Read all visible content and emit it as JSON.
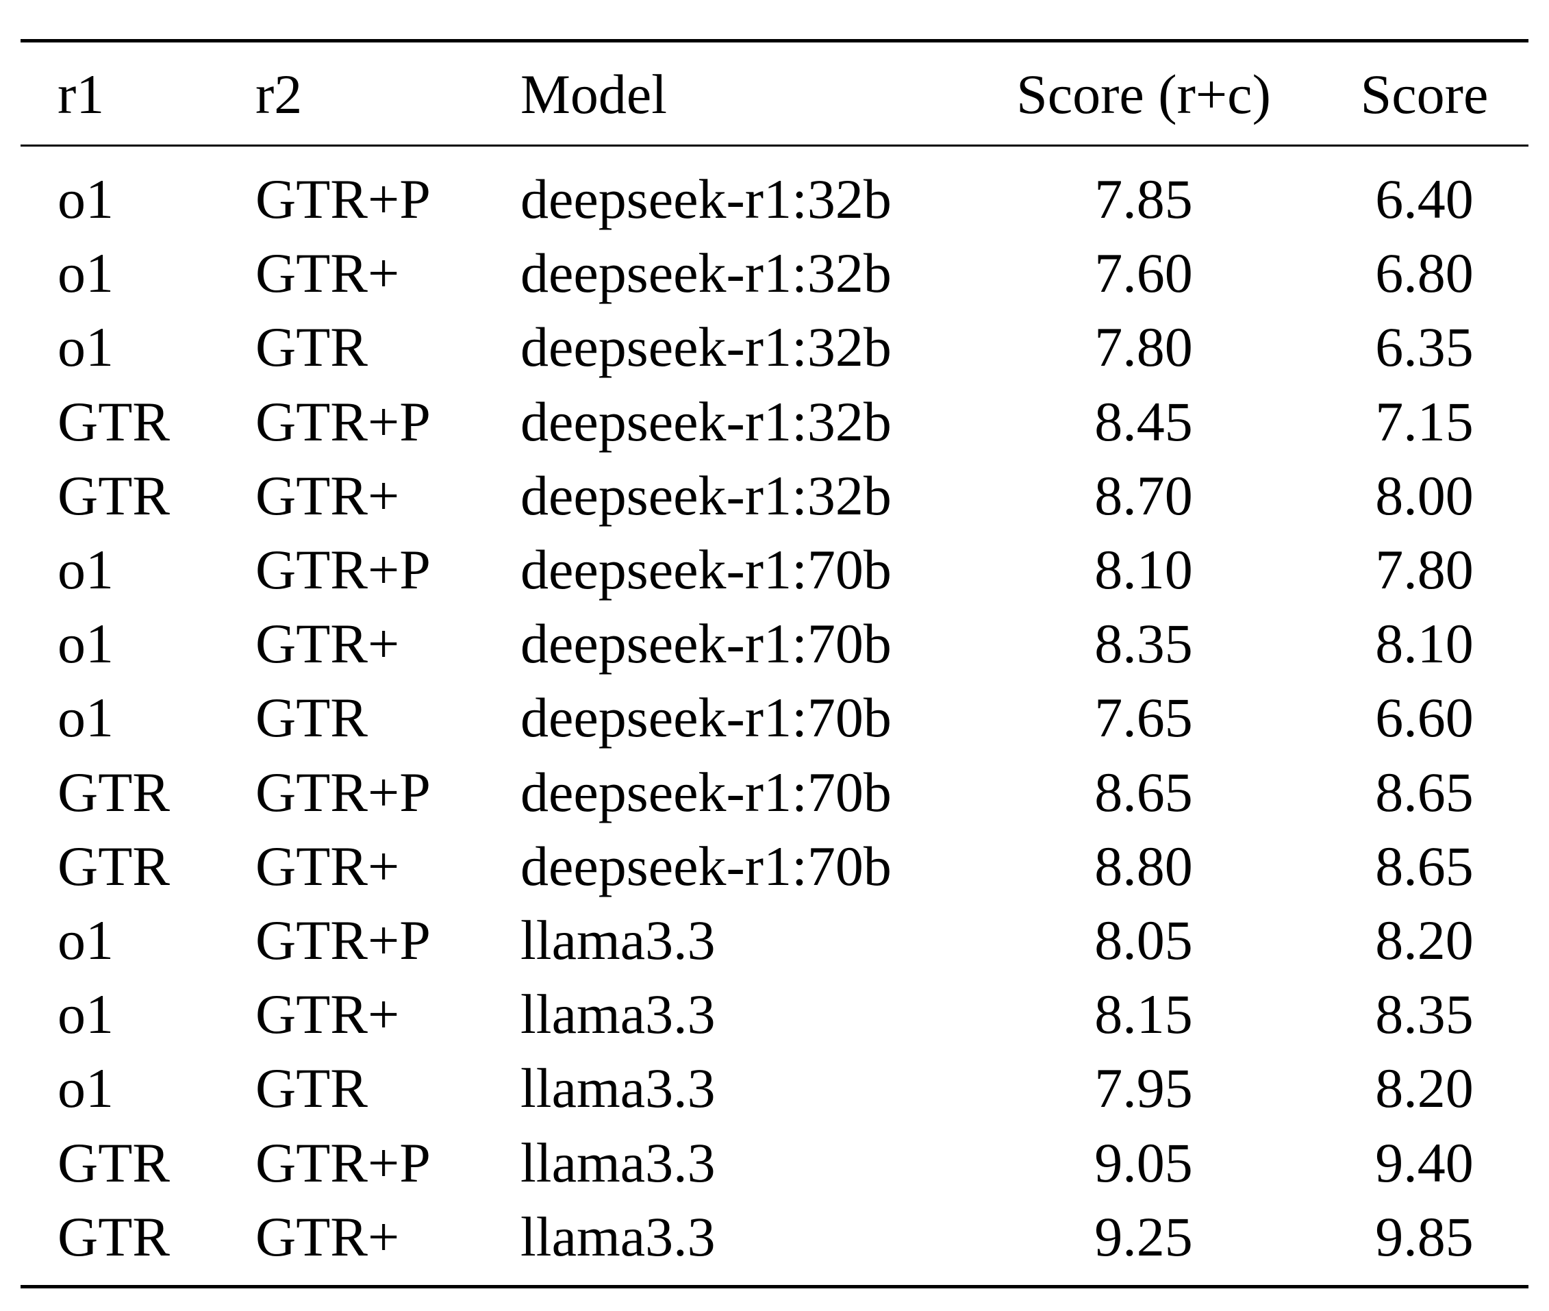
{
  "table": {
    "headers": {
      "r1": "r1",
      "r2": "r2",
      "model": "Model",
      "score_rc": "Score (r+c)",
      "score": "Score"
    },
    "rows": [
      {
        "r1": "o1",
        "r2": "GTR+P",
        "model": "deepseek-r1:32b",
        "score_rc": "7.85",
        "score": "6.40"
      },
      {
        "r1": "o1",
        "r2": "GTR+",
        "model": "deepseek-r1:32b",
        "score_rc": "7.60",
        "score": "6.80"
      },
      {
        "r1": "o1",
        "r2": "GTR",
        "model": "deepseek-r1:32b",
        "score_rc": "7.80",
        "score": "6.35"
      },
      {
        "r1": "GTR",
        "r2": "GTR+P",
        "model": "deepseek-r1:32b",
        "score_rc": "8.45",
        "score": "7.15"
      },
      {
        "r1": "GTR",
        "r2": "GTR+",
        "model": "deepseek-r1:32b",
        "score_rc": "8.70",
        "score": "8.00"
      },
      {
        "r1": "o1",
        "r2": "GTR+P",
        "model": "deepseek-r1:70b",
        "score_rc": "8.10",
        "score": "7.80"
      },
      {
        "r1": "o1",
        "r2": "GTR+",
        "model": "deepseek-r1:70b",
        "score_rc": "8.35",
        "score": "8.10"
      },
      {
        "r1": "o1",
        "r2": "GTR",
        "model": "deepseek-r1:70b",
        "score_rc": "7.65",
        "score": "6.60"
      },
      {
        "r1": "GTR",
        "r2": "GTR+P",
        "model": "deepseek-r1:70b",
        "score_rc": "8.65",
        "score": "8.65"
      },
      {
        "r1": "GTR",
        "r2": "GTR+",
        "model": "deepseek-r1:70b",
        "score_rc": "8.80",
        "score": "8.65"
      },
      {
        "r1": "o1",
        "r2": "GTR+P",
        "model": "llama3.3",
        "score_rc": "8.05",
        "score": "8.20"
      },
      {
        "r1": "o1",
        "r2": "GTR+",
        "model": "llama3.3",
        "score_rc": "8.15",
        "score": "8.35"
      },
      {
        "r1": "o1",
        "r2": "GTR",
        "model": "llama3.3",
        "score_rc": "7.95",
        "score": "8.20"
      },
      {
        "r1": "GTR",
        "r2": "GTR+P",
        "model": "llama3.3",
        "score_rc": "9.05",
        "score": "9.40"
      },
      {
        "r1": "GTR",
        "r2": "GTR+",
        "model": "llama3.3",
        "score_rc": "9.25",
        "score": "9.85"
      }
    ]
  }
}
